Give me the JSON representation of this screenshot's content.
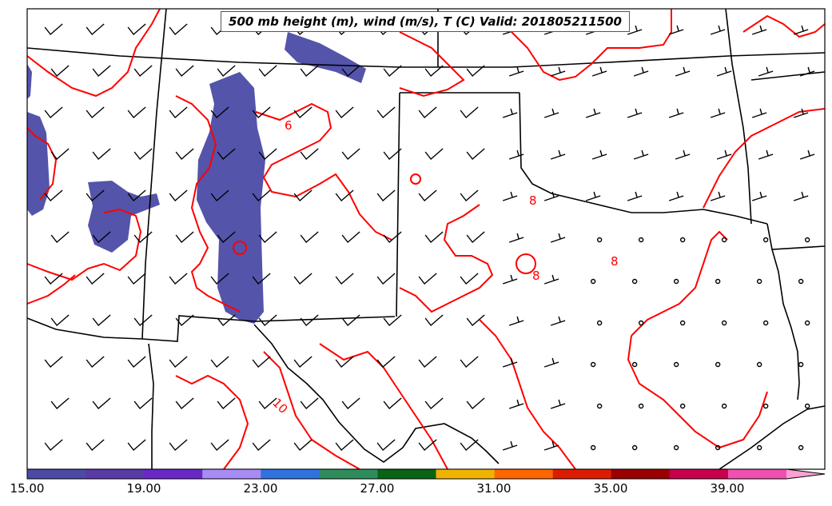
{
  "title": "500 mb height (m), wind (m/s), T (C) Valid: 201805211500",
  "contour_labels": [
    "6",
    "8",
    "8",
    "8",
    "10"
  ],
  "colorbar": {
    "tick_labels": [
      "15.00",
      "19.00",
      "23.00",
      "27.00",
      "31.00",
      "35.00",
      "39.00"
    ],
    "colors": [
      "#4b4ba6",
      "#5a3aa6",
      "#6a28c8",
      "#a78cf5",
      "#2f72e0",
      "#2e8c5c",
      "#0a6414",
      "#f0b400",
      "#ff6600",
      "#dc1c00",
      "#9a0000",
      "#c8004c",
      "#f050b0",
      "#ff9fd6"
    ]
  },
  "colors": {
    "contour": "#ff0000",
    "border": "#000000",
    "shading": "#4b4ba6"
  }
}
